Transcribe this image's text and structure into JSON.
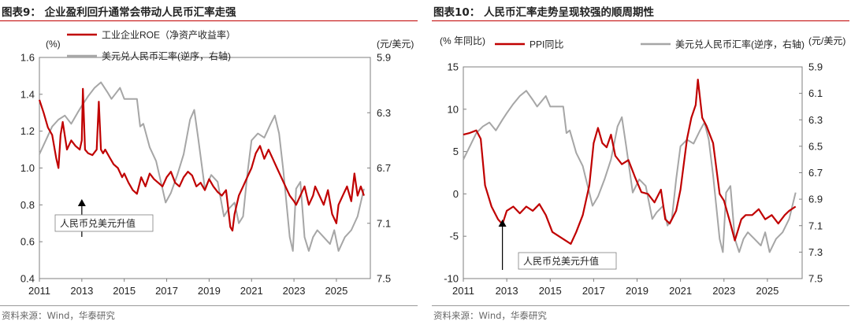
{
  "source": "资料来源：Wind，华泰研究",
  "chart_data": [
    {
      "type": "line",
      "title": "图表9：  企业盈利回升通常会带动人民币汇率走强",
      "left_unit": "(%)",
      "right_unit": "(元/美元)",
      "y_left_lim": [
        0.4,
        1.6
      ],
      "y_left_ticks": [
        "0.4",
        "0.6",
        "0.8",
        "1.0",
        "1.2",
        "1.4",
        "1.6"
      ],
      "y_right_lim": [
        5.9,
        7.5
      ],
      "y_right_inverted": true,
      "y_right_ticks": [
        "5.9",
        "6.3",
        "6.7",
        "7.1",
        "7.5"
      ],
      "x_lim": [
        2011,
        2026.6
      ],
      "x_ticks": [
        "2011",
        "2013",
        "2015",
        "2017",
        "2019",
        "2021",
        "2023",
        "2025"
      ],
      "annotation": "人民币兑美元升值",
      "annotation_arrow_x": 2013,
      "series": [
        {
          "name": "工业企业ROE（净资产收益率）",
          "axis": "left",
          "color": "#c00000",
          "x": [
            2011.0,
            2011.2,
            2011.4,
            2011.6,
            2011.8,
            2011.9,
            2012.0,
            2012.1,
            2012.3,
            2012.5,
            2012.7,
            2012.9,
            2013.0,
            2013.05,
            2013.15,
            2013.3,
            2013.5,
            2013.7,
            2013.8,
            2013.9,
            2014.0,
            2014.1,
            2014.3,
            2014.5,
            2014.7,
            2014.9,
            2015.0,
            2015.2,
            2015.4,
            2015.6,
            2015.8,
            2016.0,
            2016.2,
            2016.4,
            2016.6,
            2016.8,
            2017.0,
            2017.2,
            2017.4,
            2017.6,
            2017.8,
            2018.0,
            2018.2,
            2018.4,
            2018.6,
            2018.8,
            2019.0,
            2019.2,
            2019.4,
            2019.6,
            2019.8,
            2020.0,
            2020.1,
            2020.2,
            2020.4,
            2020.6,
            2020.8,
            2021.0,
            2021.2,
            2021.4,
            2021.6,
            2021.8,
            2022.0,
            2022.2,
            2022.4,
            2022.6,
            2022.8,
            2023.0,
            2023.1,
            2023.3,
            2023.5,
            2023.7,
            2023.9,
            2024.0,
            2024.2,
            2024.4,
            2024.6,
            2024.8,
            2025.0,
            2025.1,
            2025.3,
            2025.5,
            2025.7,
            2025.85,
            2026.0,
            2026.15,
            2026.3
          ],
          "values": [
            1.37,
            1.3,
            1.22,
            1.18,
            1.05,
            1.0,
            1.18,
            1.25,
            1.1,
            1.15,
            1.12,
            1.1,
            1.15,
            1.43,
            1.1,
            1.08,
            1.07,
            1.1,
            1.36,
            1.1,
            1.08,
            1.1,
            1.06,
            1.02,
            1.0,
            0.95,
            0.97,
            0.92,
            0.88,
            0.86,
            0.95,
            0.9,
            0.97,
            0.94,
            0.92,
            0.9,
            0.95,
            0.98,
            0.92,
            0.9,
            0.95,
            0.98,
            0.96,
            0.9,
            0.92,
            0.88,
            0.94,
            0.9,
            0.87,
            0.85,
            0.88,
            0.68,
            0.66,
            0.75,
            0.85,
            0.9,
            0.95,
            1.0,
            1.08,
            1.12,
            1.05,
            1.1,
            1.05,
            1.0,
            0.95,
            0.9,
            0.85,
            0.82,
            0.8,
            0.85,
            0.9,
            0.8,
            0.85,
            0.9,
            0.85,
            0.8,
            0.88,
            0.75,
            0.7,
            0.8,
            0.85,
            0.9,
            0.82,
            0.97,
            0.85,
            0.9,
            0.85
          ]
        },
        {
          "name": "美元兑人民币汇率(逆序，右轴)",
          "axis": "right",
          "color": "#a6a6a6",
          "x": [
            2011.0,
            2011.3,
            2011.6,
            2011.9,
            2012.2,
            2012.5,
            2012.8,
            2013.0,
            2013.3,
            2013.6,
            2013.9,
            2014.2,
            2014.4,
            2014.6,
            2014.8,
            2015.0,
            2015.3,
            2015.6,
            2015.75,
            2015.9,
            2016.2,
            2016.5,
            2016.8,
            2016.95,
            2017.2,
            2017.5,
            2017.8,
            2018.1,
            2018.3,
            2018.5,
            2018.8,
            2019.1,
            2019.4,
            2019.7,
            2019.9,
            2020.2,
            2020.4,
            2020.6,
            2020.8,
            2021.0,
            2021.3,
            2021.6,
            2021.9,
            2022.1,
            2022.3,
            2022.5,
            2022.8,
            2022.95,
            2023.1,
            2023.3,
            2023.5,
            2023.7,
            2023.9,
            2024.1,
            2024.4,
            2024.7,
            2024.9,
            2025.1,
            2025.4,
            2025.7,
            2026.0,
            2026.3
          ],
          "values": [
            6.6,
            6.5,
            6.4,
            6.35,
            6.32,
            6.38,
            6.3,
            6.25,
            6.18,
            6.12,
            6.08,
            6.15,
            6.2,
            6.16,
            6.12,
            6.2,
            6.2,
            6.2,
            6.4,
            6.38,
            6.55,
            6.65,
            6.85,
            6.95,
            6.88,
            6.75,
            6.6,
            6.35,
            6.28,
            6.5,
            6.85,
            6.75,
            6.8,
            7.05,
            7.0,
            6.95,
            7.1,
            7.05,
            6.75,
            6.5,
            6.45,
            6.48,
            6.38,
            6.32,
            6.45,
            6.72,
            7.2,
            7.3,
            6.85,
            6.8,
            7.2,
            7.3,
            7.2,
            7.15,
            7.2,
            7.25,
            7.15,
            7.3,
            7.2,
            7.15,
            7.05,
            6.85
          ]
        }
      ]
    },
    {
      "type": "line",
      "title": "图表10：  人民币汇率走势呈现较强的顺周期性",
      "left_unit": "(% 年同比)",
      "right_unit": "(元/美元)",
      "y_left_lim": [
        -10,
        15
      ],
      "y_left_ticks": [
        "-10",
        "-5",
        "0",
        "5",
        "10",
        "15"
      ],
      "y_right_lim": [
        5.9,
        7.5
      ],
      "y_right_inverted": true,
      "y_right_ticks": [
        "5.9",
        "6.1",
        "6.3",
        "6.5",
        "6.7",
        "6.9",
        "7.1",
        "7.3",
        "7.5"
      ],
      "x_lim": [
        2011,
        2026.6
      ],
      "x_ticks": [
        "2011",
        "2013",
        "2015",
        "2017",
        "2019",
        "2021",
        "2023",
        "2025"
      ],
      "annotation": "人民币兑美元升值",
      "annotation_arrow_x": 2012.8,
      "series": [
        {
          "name": "PPI同比",
          "axis": "left",
          "color": "#c00000",
          "x": [
            2011.0,
            2011.3,
            2011.6,
            2011.8,
            2012.0,
            2012.3,
            2012.6,
            2012.8,
            2013.0,
            2013.3,
            2013.6,
            2013.9,
            2014.2,
            2014.5,
            2014.8,
            2015.1,
            2015.4,
            2015.7,
            2015.95,
            2016.2,
            2016.5,
            2016.8,
            2017.0,
            2017.2,
            2017.4,
            2017.6,
            2017.8,
            2018.0,
            2018.3,
            2018.6,
            2018.9,
            2019.2,
            2019.5,
            2019.8,
            2020.1,
            2020.3,
            2020.5,
            2020.8,
            2021.0,
            2021.3,
            2021.5,
            2021.7,
            2021.8,
            2022.0,
            2022.2,
            2022.5,
            2022.8,
            2023.0,
            2023.3,
            2023.5,
            2023.8,
            2024.0,
            2024.3,
            2024.6,
            2024.9,
            2025.2,
            2025.5,
            2025.8,
            2026.0,
            2026.3
          ],
          "values": [
            7.0,
            7.2,
            7.5,
            6.5,
            1.0,
            -1.5,
            -3.0,
            -3.6,
            -2.0,
            -1.5,
            -2.3,
            -1.5,
            -2.0,
            -1.2,
            -2.5,
            -4.5,
            -5.0,
            -5.5,
            -5.9,
            -4.5,
            -2.5,
            1.0,
            6.0,
            7.8,
            6.0,
            5.5,
            7.0,
            4.5,
            3.5,
            4.0,
            2.0,
            0.2,
            0.0,
            -1.0,
            0.5,
            -3.0,
            -3.5,
            -2.0,
            0.5,
            6.5,
            9.0,
            10.5,
            13.5,
            9.0,
            8.0,
            6.0,
            0.0,
            -0.8,
            -3.5,
            -5.5,
            -3.0,
            -2.5,
            -2.5,
            -1.8,
            -3.0,
            -2.5,
            -3.5,
            -2.5,
            -2.0,
            -1.5
          ]
        },
        {
          "name": "美元兑人民币汇率(逆序，右轴)",
          "axis": "right",
          "color": "#a6a6a6",
          "x": [
            2011.0,
            2011.3,
            2011.6,
            2011.9,
            2012.2,
            2012.5,
            2012.8,
            2013.0,
            2013.3,
            2013.6,
            2013.9,
            2014.2,
            2014.4,
            2014.6,
            2014.8,
            2015.0,
            2015.3,
            2015.6,
            2015.75,
            2015.9,
            2016.2,
            2016.5,
            2016.8,
            2016.95,
            2017.2,
            2017.5,
            2017.8,
            2018.1,
            2018.3,
            2018.5,
            2018.8,
            2019.1,
            2019.4,
            2019.7,
            2019.9,
            2020.2,
            2020.4,
            2020.6,
            2020.8,
            2021.0,
            2021.3,
            2021.6,
            2021.9,
            2022.1,
            2022.3,
            2022.5,
            2022.8,
            2022.95,
            2023.1,
            2023.3,
            2023.5,
            2023.7,
            2023.9,
            2024.1,
            2024.4,
            2024.7,
            2024.9,
            2025.1,
            2025.4,
            2025.7,
            2026.0,
            2026.3
          ],
          "values": [
            6.6,
            6.5,
            6.4,
            6.35,
            6.32,
            6.38,
            6.3,
            6.25,
            6.18,
            6.12,
            6.08,
            6.15,
            6.2,
            6.16,
            6.12,
            6.2,
            6.2,
            6.2,
            6.4,
            6.38,
            6.55,
            6.65,
            6.85,
            6.95,
            6.88,
            6.75,
            6.6,
            6.35,
            6.28,
            6.5,
            6.85,
            6.75,
            6.8,
            7.05,
            7.0,
            6.95,
            7.1,
            7.05,
            6.75,
            6.5,
            6.45,
            6.48,
            6.38,
            6.32,
            6.45,
            6.72,
            7.2,
            7.3,
            6.85,
            6.8,
            7.2,
            7.3,
            7.2,
            7.15,
            7.2,
            7.25,
            7.15,
            7.3,
            7.2,
            7.15,
            7.05,
            6.85
          ]
        }
      ]
    }
  ]
}
